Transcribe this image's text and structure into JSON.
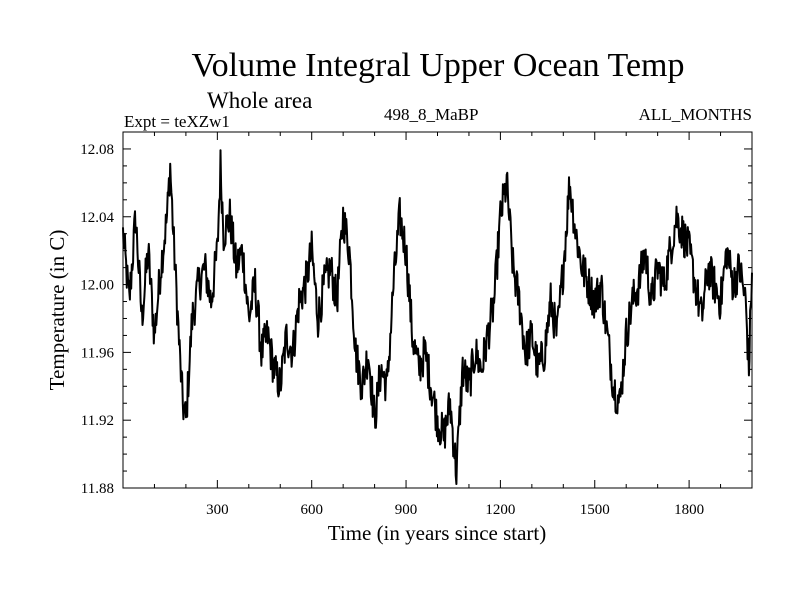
{
  "chart_data": {
    "type": "line",
    "title": "Volume Integral Upper Ocean Temp",
    "subtitle": "Whole area",
    "experiment_label": "Expt = teXZw1",
    "run_label": "498_8_MaBP",
    "months_label": "ALL_MONTHS",
    "xlabel": "Time (in years since start)",
    "ylabel": "Temperature (in C)",
    "xlim": [
      0,
      2000
    ],
    "ylim": [
      11.88,
      12.09
    ],
    "xticks": [
      300,
      600,
      900,
      1200,
      1500,
      1800
    ],
    "yticks": [
      11.88,
      11.92,
      11.96,
      12.0,
      12.04,
      12.08
    ],
    "ytick_labels": [
      "11.88",
      "11.92",
      "11.96",
      "12.00",
      "12.04",
      "12.08"
    ],
    "series": [
      {
        "name": "Volume integral upper ocean temperature",
        "color": "#000000",
        "x": [
          0,
          20,
          40,
          60,
          80,
          100,
          120,
          140,
          150,
          160,
          180,
          190,
          200,
          220,
          240,
          260,
          280,
          300,
          310,
          320,
          340,
          360,
          380,
          400,
          420,
          440,
          460,
          480,
          500,
          520,
          540,
          560,
          580,
          600,
          620,
          640,
          660,
          680,
          700,
          720,
          740,
          760,
          780,
          800,
          820,
          840,
          860,
          880,
          900,
          920,
          940,
          960,
          980,
          1000,
          1020,
          1040,
          1060,
          1080,
          1100,
          1120,
          1140,
          1160,
          1180,
          1200,
          1220,
          1240,
          1260,
          1280,
          1300,
          1320,
          1340,
          1360,
          1380,
          1400,
          1420,
          1440,
          1460,
          1480,
          1500,
          1520,
          1540,
          1560,
          1580,
          1600,
          1620,
          1640,
          1660,
          1680,
          1700,
          1720,
          1740,
          1760,
          1780,
          1800,
          1820,
          1840,
          1860,
          1880,
          1900,
          1920,
          1940,
          1960,
          1980,
          1990,
          2000
        ],
        "y": [
          12.03,
          11.99,
          12.04,
          11.98,
          12.02,
          11.97,
          12.01,
          12.04,
          12.07,
          12.03,
          11.96,
          11.93,
          11.92,
          11.98,
          12.0,
          12.01,
          11.99,
          12.02,
          12.07,
          12.03,
          12.04,
          12.01,
          12.02,
          11.98,
          12.0,
          11.96,
          11.97,
          11.95,
          11.94,
          11.97,
          11.96,
          11.99,
          12.0,
          12.02,
          11.98,
          12.0,
          12.01,
          11.99,
          12.04,
          12.02,
          11.96,
          11.94,
          11.96,
          11.92,
          11.95,
          11.94,
          12.0,
          12.04,
          12.02,
          11.97,
          11.95,
          11.96,
          11.94,
          11.92,
          11.91,
          11.93,
          11.89,
          11.95,
          11.94,
          11.96,
          11.95,
          11.97,
          11.99,
          12.04,
          12.06,
          12.01,
          11.99,
          11.96,
          11.97,
          11.95,
          11.96,
          11.99,
          11.97,
          12.01,
          12.06,
          12.03,
          12.01,
          12.0,
          11.99,
          12.0,
          11.97,
          11.94,
          11.93,
          11.97,
          11.99,
          12.0,
          12.02,
          11.99,
          12.01,
          12.0,
          12.02,
          12.04,
          12.03,
          12.02,
          12.0,
          11.98,
          12.01,
          12.0,
          11.99,
          12.02,
          12.0,
          12.01,
          11.99,
          11.95,
          12.01
        ]
      }
    ]
  }
}
